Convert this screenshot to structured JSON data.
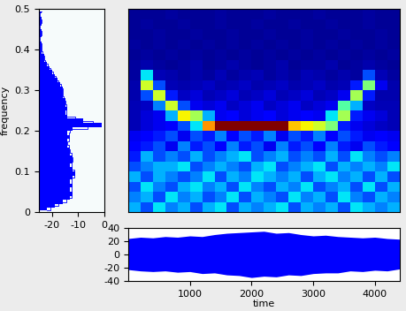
{
  "chart_data": [
    {
      "type": "area",
      "orientation": "horizontal",
      "ylabel": "frequency",
      "color": "#0000ff",
      "x": [
        0.005,
        0.015,
        0.025,
        0.035,
        0.045,
        0.055,
        0.065,
        0.075,
        0.085,
        0.095,
        0.105,
        0.115,
        0.125,
        0.135,
        0.145,
        0.155,
        0.165,
        0.175,
        0.185,
        0.195,
        0.205,
        0.215,
        0.225,
        0.235,
        0.245,
        0.255,
        0.265,
        0.275,
        0.285,
        0.295,
        0.305,
        0.315,
        0.325,
        0.335,
        0.345,
        0.355,
        0.365,
        0.375,
        0.385,
        0.395,
        0.405,
        0.415,
        0.425,
        0.435,
        0.445,
        0.455,
        0.465,
        0.475,
        0.485,
        0.495
      ],
      "values": [
        -22,
        -19,
        -16,
        -13,
        -12,
        -13,
        -12,
        -13,
        -12,
        -11,
        -12,
        -13,
        -12,
        -12,
        -13,
        -13,
        -14,
        -14,
        -13,
        -14,
        -12,
        -1,
        -8,
        -14,
        -15,
        -14,
        -15,
        -15,
        -16,
        -16,
        -16,
        -17,
        -18,
        -19,
        -20,
        -21,
        -22,
        -23,
        -23,
        -24,
        -24,
        -24,
        -25,
        -24,
        -24,
        -25,
        -24,
        -24,
        -25,
        -24
      ],
      "xlim": [
        -25,
        0
      ],
      "xticks": [
        -20,
        -10,
        0
      ],
      "ylim": [
        0,
        0.5
      ],
      "yticks": [
        0,
        0.1,
        0.2,
        0.3,
        0.4,
        0.5
      ]
    },
    {
      "type": "heatmap",
      "tick_labels": false,
      "time_edges": [
        0,
        200,
        400,
        600,
        800,
        1000,
        1200,
        1400,
        1600,
        1800,
        2000,
        2200,
        2400,
        2600,
        2800,
        3000,
        3200,
        3400,
        3600,
        3800,
        4000,
        4200,
        4400
      ],
      "freq_edges": [
        0,
        0.025,
        0.05,
        0.075,
        0.1,
        0.125,
        0.15,
        0.175,
        0.2,
        0.225,
        0.25,
        0.275,
        0.3,
        0.325,
        0.35,
        0.375,
        0.4,
        0.425,
        0.45,
        0.475,
        0.5
      ],
      "zlim": [
        0,
        1
      ],
      "cells": [
        [
          0.3,
          0.2,
          0.35,
          0.25,
          0.3,
          0.2,
          0.3,
          0.35,
          0.2,
          0.3,
          0.25,
          0.3,
          0.35,
          0.2,
          0.3,
          0.25,
          0.3,
          0.2,
          0.35,
          0.3,
          0.25,
          0.3
        ],
        [
          0.25,
          0.3,
          0.2,
          0.35,
          0.25,
          0.3,
          0.2,
          0.25,
          0.35,
          0.2,
          0.3,
          0.25,
          0.2,
          0.35,
          0.25,
          0.3,
          0.2,
          0.35,
          0.25,
          0.2,
          0.3,
          0.25
        ],
        [
          0.2,
          0.35,
          0.25,
          0.2,
          0.3,
          0.35,
          0.25,
          0.3,
          0.2,
          0.35,
          0.25,
          0.2,
          0.3,
          0.25,
          0.35,
          0.2,
          0.25,
          0.3,
          0.2,
          0.35,
          0.2,
          0.3
        ],
        [
          0.3,
          0.2,
          0.3,
          0.25,
          0.2,
          0.25,
          0.35,
          0.2,
          0.3,
          0.25,
          0.35,
          0.3,
          0.25,
          0.3,
          0.2,
          0.3,
          0.35,
          0.25,
          0.3,
          0.2,
          0.3,
          0.2
        ],
        [
          0.2,
          0.25,
          0.3,
          0.3,
          0.35,
          0.2,
          0.25,
          0.3,
          0.25,
          0.2,
          0.3,
          0.35,
          0.2,
          0.25,
          0.3,
          0.35,
          0.2,
          0.3,
          0.25,
          0.3,
          0.25,
          0.35
        ],
        [
          0.15,
          0.3,
          0.2,
          0.25,
          0.2,
          0.3,
          0.2,
          0.25,
          0.3,
          0.35,
          0.2,
          0.25,
          0.3,
          0.2,
          0.25,
          0.2,
          0.3,
          0.2,
          0.35,
          0.25,
          0.2,
          0.25
        ],
        [
          0.12,
          0.15,
          0.2,
          0.1,
          0.25,
          0.15,
          0.2,
          0.12,
          0.25,
          0.15,
          0.2,
          0.1,
          0.25,
          0.15,
          0.2,
          0.12,
          0.25,
          0.15,
          0.1,
          0.2,
          0.15,
          0.12
        ],
        [
          0.1,
          0.12,
          0.15,
          0.2,
          0.1,
          0.2,
          0.15,
          0.25,
          0.12,
          0.2,
          0.15,
          0.25,
          0.1,
          0.2,
          0.15,
          0.25,
          0.12,
          0.2,
          0.15,
          0.1,
          0.12,
          0.1
        ],
        [
          0.05,
          0.08,
          0.1,
          0.12,
          0.2,
          0.35,
          0.75,
          1.0,
          1.0,
          1.0,
          1.0,
          1.0,
          1.0,
          0.7,
          0.65,
          0.6,
          0.5,
          0.15,
          0.1,
          0.08,
          0.06,
          0.05
        ],
        [
          0.05,
          0.08,
          0.1,
          0.3,
          0.65,
          0.55,
          0.3,
          0.1,
          0.12,
          0.08,
          0.1,
          0.12,
          0.08,
          0.1,
          0.12,
          0.1,
          0.35,
          0.55,
          0.15,
          0.1,
          0.08,
          0.05
        ],
        [
          0.05,
          0.06,
          0.25,
          0.6,
          0.2,
          0.1,
          0.08,
          0.1,
          0.06,
          0.08,
          0.1,
          0.06,
          0.08,
          0.1,
          0.06,
          0.08,
          0.1,
          0.45,
          0.3,
          0.06,
          0.05,
          0.05
        ],
        [
          0.04,
          0.2,
          0.6,
          0.15,
          0.06,
          0.08,
          0.05,
          0.06,
          0.08,
          0.05,
          0.06,
          0.08,
          0.05,
          0.06,
          0.08,
          0.05,
          0.06,
          0.1,
          0.55,
          0.15,
          0.04,
          0.04
        ],
        [
          0.04,
          0.6,
          0.2,
          0.05,
          0.04,
          0.05,
          0.06,
          0.04,
          0.05,
          0.06,
          0.04,
          0.05,
          0.06,
          0.04,
          0.05,
          0.06,
          0.04,
          0.05,
          0.15,
          0.5,
          0.1,
          0.04
        ],
        [
          0.03,
          0.35,
          0.05,
          0.04,
          0.03,
          0.04,
          0.03,
          0.05,
          0.03,
          0.04,
          0.05,
          0.03,
          0.04,
          0.03,
          0.05,
          0.04,
          0.03,
          0.04,
          0.03,
          0.2,
          0.05,
          0.03
        ],
        [
          0.03,
          0.04,
          0.03,
          0.02,
          0.03,
          0.04,
          0.02,
          0.03,
          0.04,
          0.03,
          0.02,
          0.03,
          0.04,
          0.02,
          0.03,
          0.03,
          0.04,
          0.02,
          0.03,
          0.04,
          0.03,
          0.02
        ],
        [
          0.02,
          0.03,
          0.02,
          0.03,
          0.02,
          0.03,
          0.02,
          0.03,
          0.02,
          0.03,
          0.02,
          0.03,
          0.02,
          0.03,
          0.02,
          0.03,
          0.02,
          0.03,
          0.02,
          0.03,
          0.02,
          0.03
        ],
        [
          0.03,
          0.02,
          0.03,
          0.02,
          0.03,
          0.02,
          0.03,
          0.02,
          0.03,
          0.02,
          0.03,
          0.02,
          0.03,
          0.02,
          0.03,
          0.02,
          0.03,
          0.02,
          0.03,
          0.02,
          0.03,
          0.02
        ],
        [
          0.02,
          0.02,
          0.03,
          0.02,
          0.02,
          0.03,
          0.02,
          0.02,
          0.03,
          0.02,
          0.02,
          0.03,
          0.02,
          0.02,
          0.03,
          0.02,
          0.02,
          0.03,
          0.02,
          0.02,
          0.03,
          0.02
        ],
        [
          0.02,
          0.03,
          0.02,
          0.02,
          0.03,
          0.02,
          0.02,
          0.03,
          0.02,
          0.02,
          0.03,
          0.02,
          0.02,
          0.03,
          0.02,
          0.02,
          0.03,
          0.02,
          0.02,
          0.03,
          0.02,
          0.02
        ],
        [
          0.02,
          0.02,
          0.02,
          0.03,
          0.02,
          0.02,
          0.02,
          0.03,
          0.02,
          0.02,
          0.02,
          0.03,
          0.02,
          0.02,
          0.02,
          0.03,
          0.02,
          0.02,
          0.02,
          0.03,
          0.02,
          0.02
        ]
      ],
      "xlim": [
        0,
        4400
      ],
      "ylim": [
        0,
        0.5
      ]
    },
    {
      "type": "band",
      "xlabel": "time",
      "color": "#0000ff",
      "x": [
        0,
        200,
        400,
        600,
        800,
        1000,
        1200,
        1400,
        1600,
        1800,
        2000,
        2200,
        2400,
        2600,
        2800,
        3000,
        3200,
        3400,
        3600,
        3800,
        4000,
        4200,
        4400
      ],
      "upper": [
        24,
        26,
        25,
        27,
        26,
        28,
        27,
        30,
        32,
        33,
        34,
        35,
        32,
        33,
        30,
        28,
        29,
        27,
        26,
        25,
        26,
        24,
        23
      ],
      "lower": [
        -23,
        -25,
        -26,
        -25,
        -27,
        -26,
        -29,
        -28,
        -31,
        -32,
        -35,
        -33,
        -34,
        -31,
        -32,
        -29,
        -28,
        -28,
        -25,
        -26,
        -24,
        -25,
        -22
      ],
      "xlim": [
        0,
        4400
      ],
      "xticks": [
        1000,
        2000,
        3000,
        4000
      ],
      "ylim": [
        -40,
        40
      ],
      "yticks": [
        -40,
        -20,
        0,
        20,
        40
      ]
    }
  ]
}
